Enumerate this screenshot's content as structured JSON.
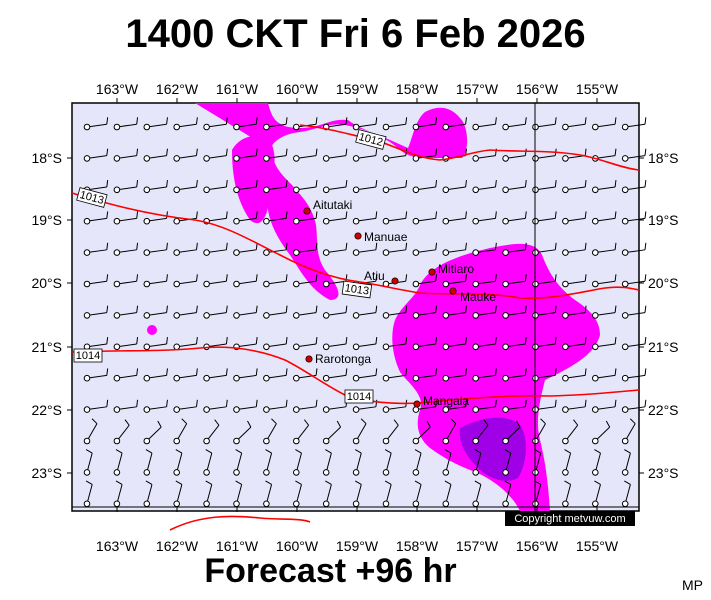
{
  "title": "1400 CKT Fri 6 Feb 2026",
  "subtitle": "Forecast +96 hr",
  "initials": "MP",
  "copyright": "Copyright metvuw.com",
  "lon_labels": [
    "163°W",
    "162°W",
    "161°W",
    "160°W",
    "159°W",
    "158°W",
    "157°W",
    "156°W",
    "155°W"
  ],
  "lat_labels": [
    "18°S",
    "19°S",
    "20°S",
    "21°S",
    "22°S",
    "23°S"
  ],
  "isobars": [
    {
      "label": "1012"
    },
    {
      "label": "1013"
    },
    {
      "label": "1013"
    },
    {
      "label": "1014"
    },
    {
      "label": "1014"
    }
  ],
  "islands": [
    {
      "name": "Aitutaki"
    },
    {
      "name": "Manuae"
    },
    {
      "name": "Mitiaro"
    },
    {
      "name": "Atiu"
    },
    {
      "name": "Mauke"
    },
    {
      "name": "Rarotonga"
    },
    {
      "name": "Mangaia"
    }
  ],
  "colors": {
    "background": "#e6e6fa",
    "rain_light": "#ff00ff",
    "rain_heavy": "#a000e6",
    "isobar": "#ff0000",
    "island": "#cc0000"
  }
}
